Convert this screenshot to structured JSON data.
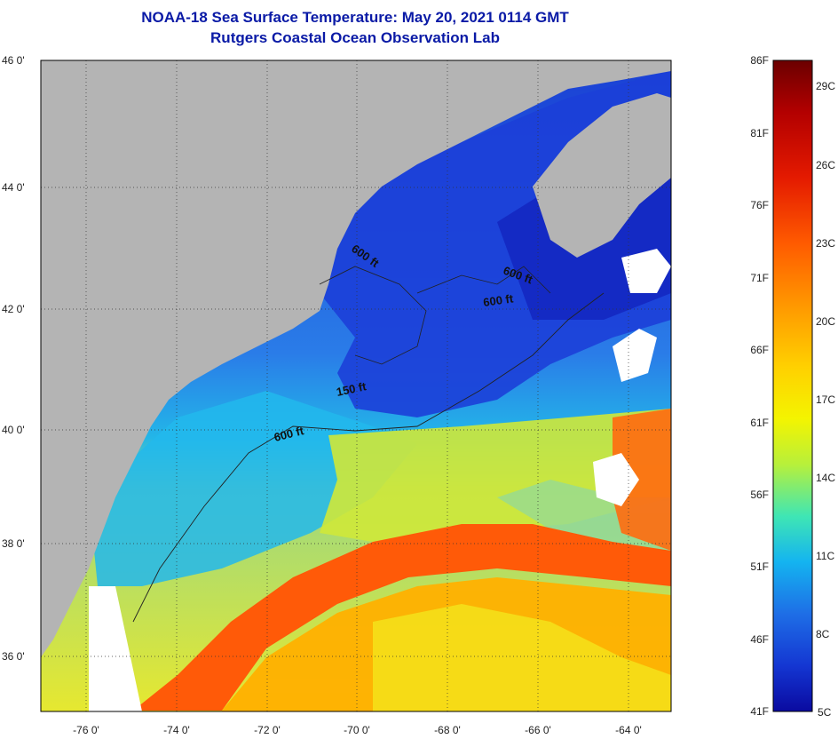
{
  "title": {
    "line1": "NOAA-18 Sea Surface Temperature:  May 20, 2021 0114 GMT",
    "line2": "Rutgers Coastal Ocean Observation Lab"
  },
  "axes": {
    "lat_labels": [
      "46 0'",
      "44 0'",
      "42 0'",
      "40 0'",
      "38 0'",
      "36 0'"
    ],
    "lon_labels": [
      "-76 0'",
      "-74 0'",
      "-72 0'",
      "-70 0'",
      "-68 0'",
      "-66 0'",
      "-64 0'"
    ]
  },
  "contour_labels": [
    "600 ft",
    "600 ft",
    "600 ft",
    "150 ft",
    "600 ft"
  ],
  "colorbar": {
    "fahrenheit": [
      "86F",
      "81F",
      "76F",
      "71F",
      "66F",
      "61F",
      "56F",
      "51F",
      "46F",
      "41F"
    ],
    "celsius": [
      "29C",
      "26C",
      "23C",
      "20C",
      "17C",
      "14C",
      "11C",
      "8C",
      "5C"
    ],
    "stops": [
      "#6b0000",
      "#b30000",
      "#e41a00",
      "#ff5a00",
      "#ff9a00",
      "#ffd000",
      "#f4f400",
      "#b8f03a",
      "#3fe6b4",
      "#14b4f0",
      "#1e6ee6",
      "#1436d2",
      "#0a0aa0"
    ]
  },
  "colors": {
    "land": "#b4b4b4",
    "title": "#0a1aa6"
  }
}
